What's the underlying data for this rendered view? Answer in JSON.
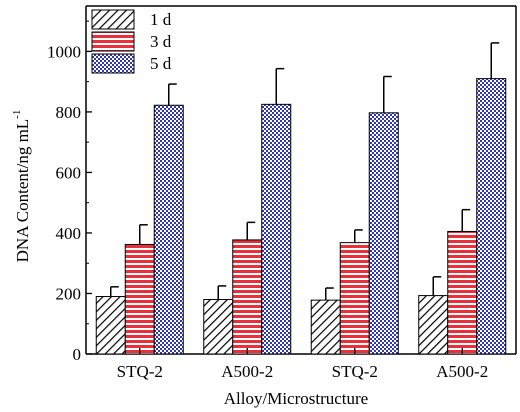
{
  "chart_data": {
    "type": "bar",
    "categories": [
      "STQ-2",
      "A500-2",
      "STQ-2",
      "A500-2"
    ],
    "series": [
      {
        "name": "1 d",
        "values": [
          190,
          180,
          178,
          193
        ],
        "errors": [
          32,
          45,
          40,
          62
        ],
        "color": "#ffffff",
        "pattern": "diagonal-hatch"
      },
      {
        "name": "3 d",
        "values": [
          362,
          377,
          368,
          405
        ],
        "errors": [
          65,
          58,
          42,
          72
        ],
        "color": "#e8303a",
        "pattern": "horizontal-stripes"
      },
      {
        "name": "5 d",
        "values": [
          822,
          825,
          797,
          910
        ],
        "errors": [
          70,
          118,
          120,
          118
        ],
        "color": "#3036b8",
        "pattern": "checker"
      }
    ],
    "title": "",
    "xlabel": "Alloy/Microstructure",
    "ylabel": "DNA Content/ng mL",
    "ylabel_superscript": "-1",
    "ylim": [
      0,
      1150
    ],
    "yticks": [
      0,
      200,
      400,
      600,
      800,
      1000
    ],
    "legend_position": "top-left",
    "grid": false
  }
}
